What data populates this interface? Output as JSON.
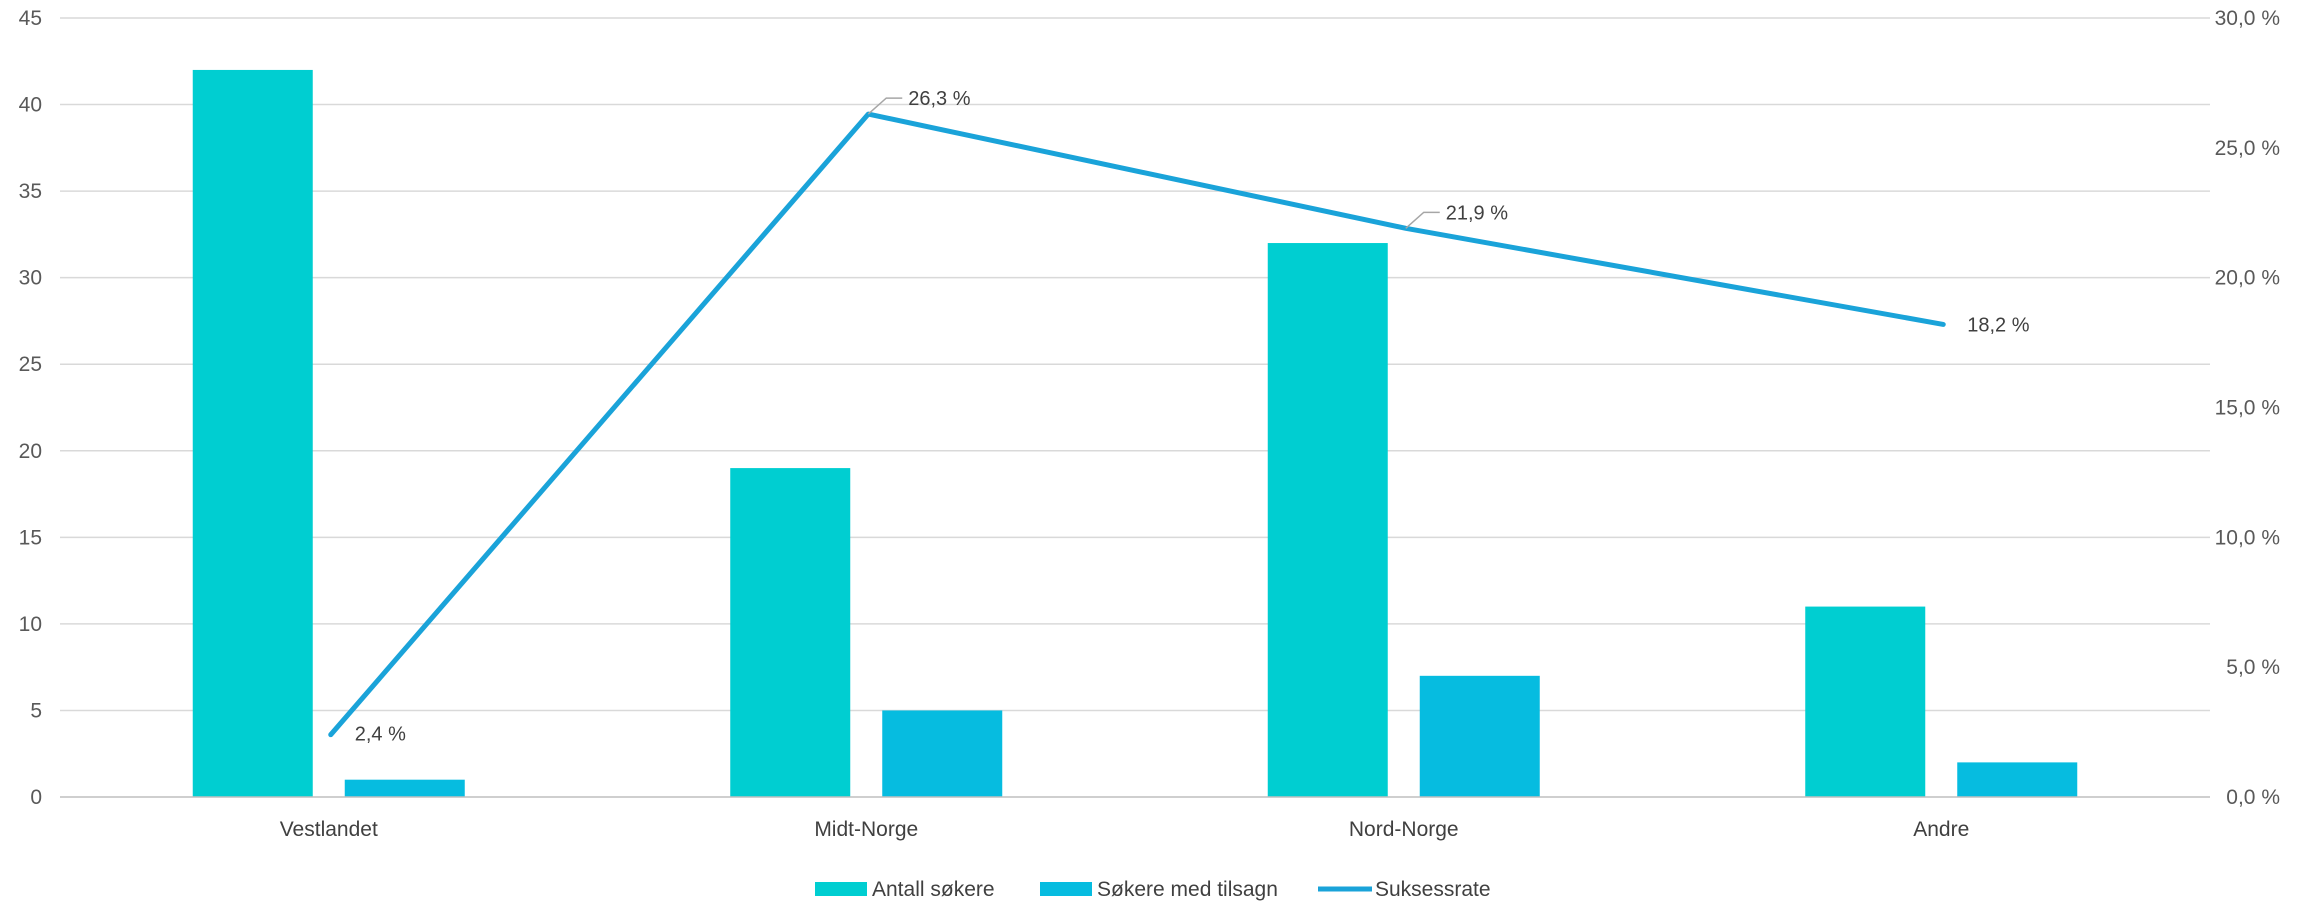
{
  "chart_data": {
    "type": "bar",
    "categories": [
      "Vestlandet",
      "Midt-Norge",
      "Nord-Norge",
      "Andre"
    ],
    "series": [
      {
        "name": "Antall søkere",
        "kind": "bar",
        "axis": "left",
        "color": "#00CED1",
        "values": [
          42,
          19,
          32,
          11
        ]
      },
      {
        "name": "Søkere med tilsagn",
        "kind": "bar",
        "axis": "left",
        "color": "#06BCE0",
        "values": [
          1,
          5,
          7,
          2
        ]
      },
      {
        "name": "Suksessrate",
        "kind": "line",
        "axis": "right",
        "color": "#1AA3D9",
        "values": [
          2.4,
          26.3,
          21.9,
          18.2
        ],
        "labels": [
          "2,4 %",
          "26,3 %",
          "21,9 %",
          "18,2 %"
        ]
      }
    ],
    "y_left": {
      "range": [
        0,
        45
      ],
      "ticks": [
        "0",
        "5",
        "10",
        "15",
        "20",
        "25",
        "30",
        "35",
        "40",
        "45"
      ]
    },
    "y_right": {
      "range": [
        0,
        30
      ],
      "ticks": [
        "0,0 %",
        "5,0 %",
        "10,0 %",
        "15,0 %",
        "20,0 %",
        "25,0 %",
        "30,0 %"
      ]
    },
    "grid": true,
    "legend": "bottom-center",
    "title": "",
    "xlabel": "",
    "ylabel": ""
  }
}
